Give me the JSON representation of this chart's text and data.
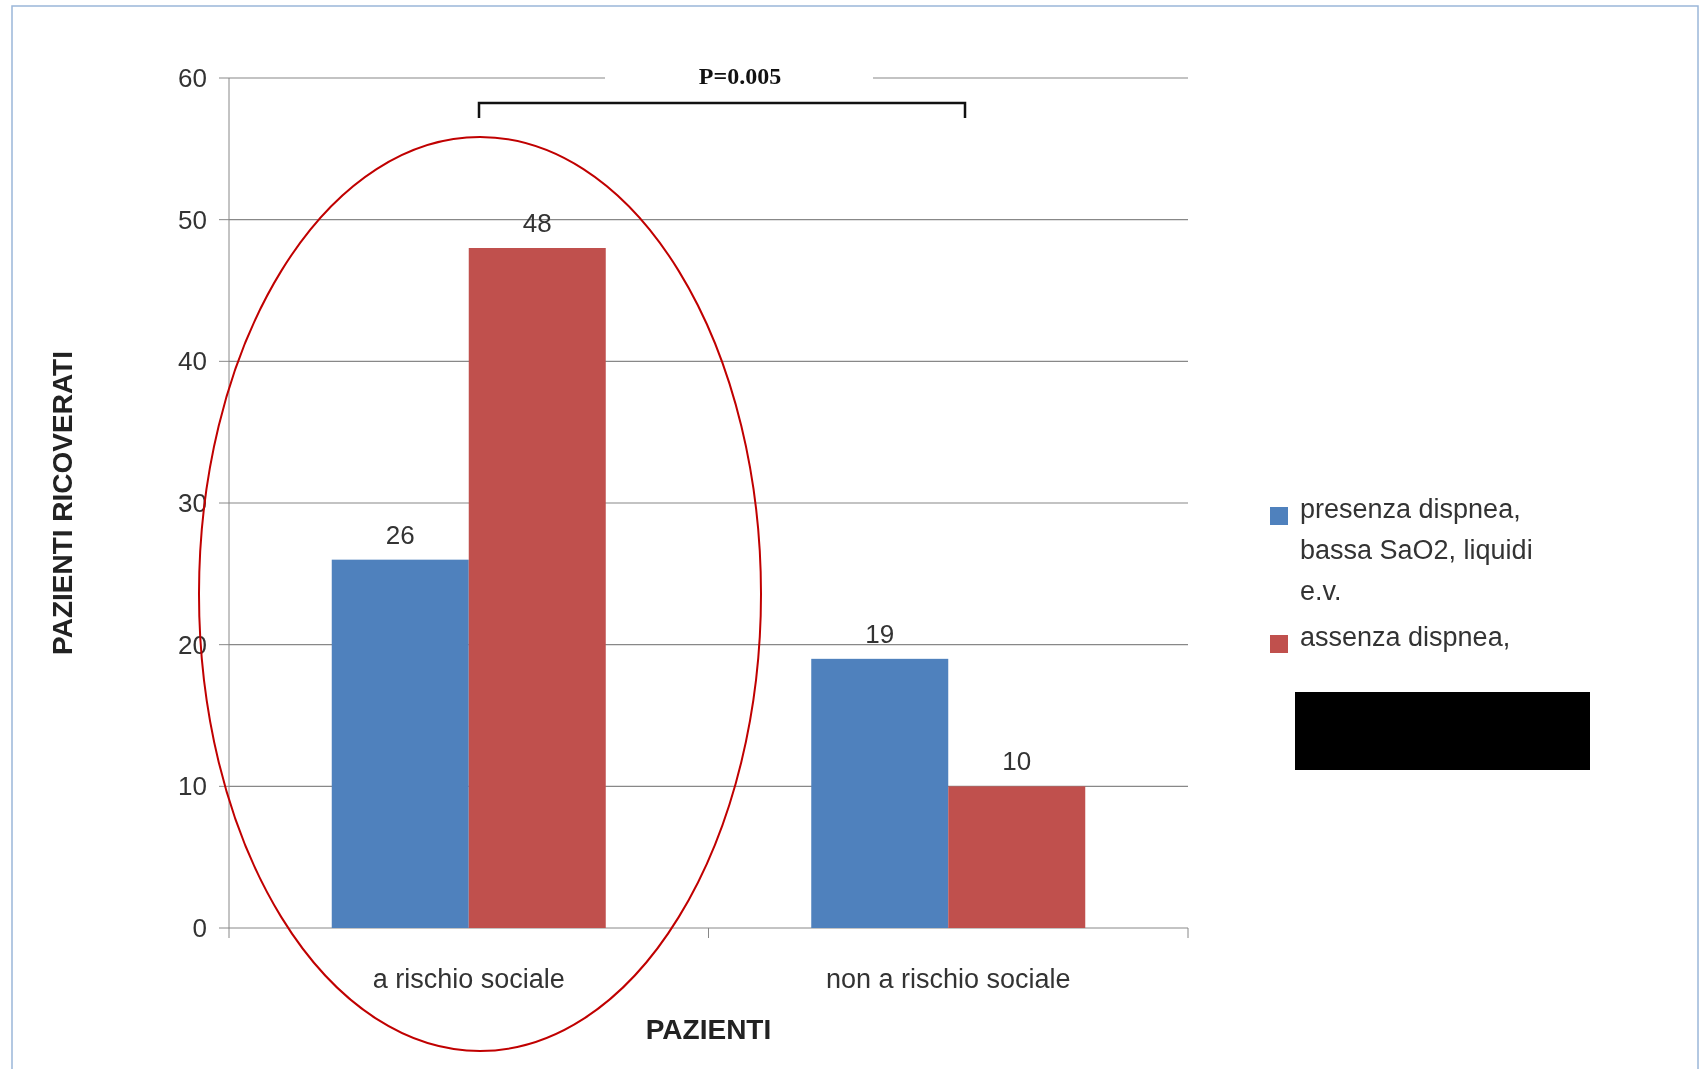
{
  "chart_data": {
    "type": "bar",
    "xlabel": "PAZIENTI",
    "ylabel": "PAZIENTI RICOVERATI",
    "categories": [
      "a rischio sociale",
      "non a rischio sociale"
    ],
    "series": [
      {
        "name": "presenza dispnea, bassa SaO2, liquidi e.v.",
        "color": "#4f81bd",
        "values": [
          26,
          19
        ]
      },
      {
        "name": "assenza dispnea,",
        "color": "#c0504d",
        "values": [
          48,
          10
        ]
      }
    ],
    "ylim": [
      0,
      60
    ],
    "yticks": [
      0,
      10,
      20,
      30,
      40,
      50,
      60
    ],
    "grid": "y",
    "legend": "right",
    "data_labels": true,
    "annotations": [
      "P=0.005"
    ]
  }
}
